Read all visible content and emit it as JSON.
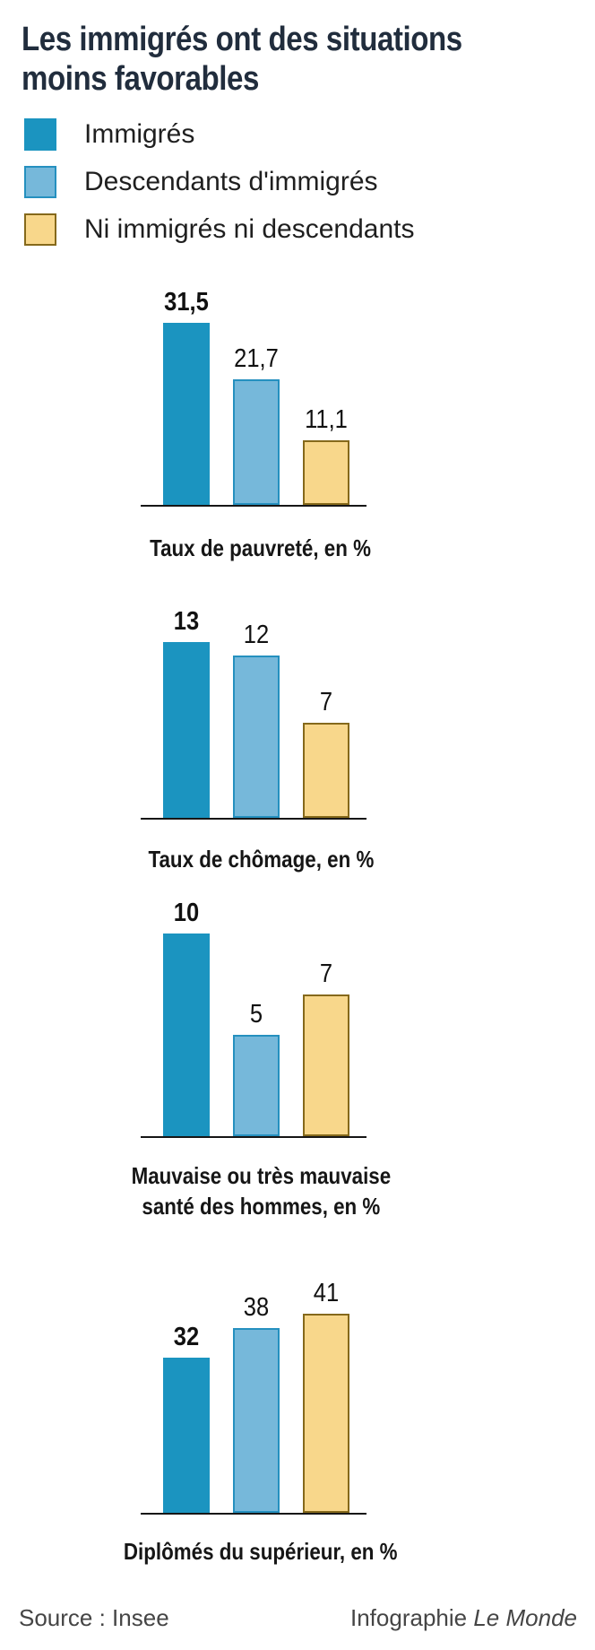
{
  "title": "Les immigrés ont des situations\nmoins favorables",
  "legend": {
    "items": [
      {
        "label": "Immigrés"
      },
      {
        "label": "Descendants d'immigrés"
      },
      {
        "label": "Ni immigrés ni descendants"
      }
    ]
  },
  "colors": {
    "immigres": "#1b94c0",
    "descendants_fill": "#76b8da",
    "descendants_border": "#2590bf",
    "ni_immigres_fill": "#f8d78b",
    "ni_immigres_border": "#85691b",
    "title_navy": "#212d3d",
    "axis_black": "#161616"
  },
  "chart_data": [
    {
      "type": "bar",
      "title": "Taux de pauvreté, en %",
      "categories": [
        "Immigrés",
        "Descendants d'immigrés",
        "Ni immigrés ni descendants"
      ],
      "values": [
        31.5,
        21.7,
        11.1
      ],
      "value_labels": [
        "31,5",
        "21,7",
        "11,1"
      ],
      "ylim": [
        0,
        31.5
      ],
      "grid": false,
      "legend_position": "top"
    },
    {
      "type": "bar",
      "title": "Taux de chômage, en %",
      "categories": [
        "Immigrés",
        "Descendants d'immigrés",
        "Ni immigrés ni descendants"
      ],
      "values": [
        13,
        12,
        7
      ],
      "value_labels": [
        "13",
        "12",
        "7"
      ],
      "ylim": [
        0,
        13
      ],
      "grid": false,
      "legend_position": "top"
    },
    {
      "type": "bar",
      "title": "Mauvaise ou très mauvaise\nsanté des hommes, en %",
      "categories": [
        "Immigrés",
        "Descendants d'immigrés",
        "Ni immigrés ni descendants"
      ],
      "values": [
        10,
        5,
        7
      ],
      "value_labels": [
        "10",
        "5",
        "7"
      ],
      "ylim": [
        0,
        10
      ],
      "grid": false,
      "legend_position": "top"
    },
    {
      "type": "bar",
      "title": "Diplômés du supérieur, en %",
      "categories": [
        "Immigrés",
        "Descendants d'immigrés",
        "Ni immigrés ni descendants"
      ],
      "values": [
        32,
        38,
        41
      ],
      "value_labels": [
        "32",
        "38",
        "41"
      ],
      "ylim": [
        0,
        41
      ],
      "grid": false,
      "legend_position": "top"
    }
  ],
  "footer": {
    "source": "Source : Insee",
    "credit": "Infographie",
    "credit_name": "Le Monde"
  }
}
